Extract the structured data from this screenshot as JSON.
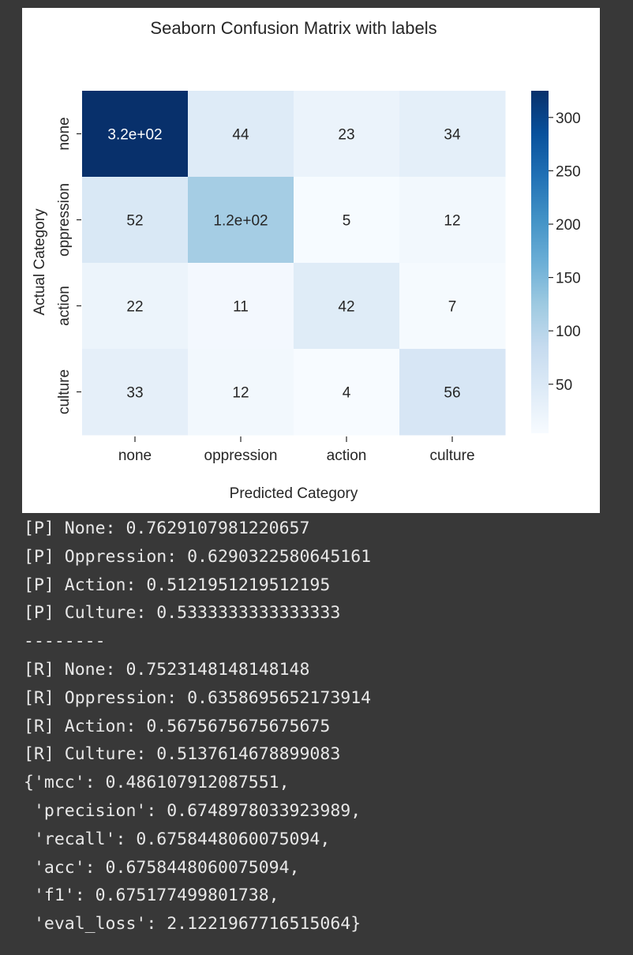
{
  "chart_data": {
    "type": "heatmap",
    "title": "Seaborn Confusion Matrix with labels",
    "xlabel": "Predicted Category",
    "ylabel": "Actual Category",
    "x_categories": [
      "none",
      "oppression",
      "action",
      "culture"
    ],
    "y_categories": [
      "none",
      "oppression",
      "action",
      "culture"
    ],
    "values": [
      [
        325,
        44,
        23,
        34
      ],
      [
        52,
        117,
        5,
        12
      ],
      [
        22,
        11,
        42,
        7
      ],
      [
        33,
        12,
        4,
        56
      ]
    ],
    "annotations": [
      [
        "3.2e+02",
        "44",
        "23",
        "34"
      ],
      [
        "52",
        "1.2e+02",
        "5",
        "12"
      ],
      [
        "22",
        "11",
        "42",
        "7"
      ],
      [
        "33",
        "12",
        "4",
        "56"
      ]
    ],
    "colormap": "Blues",
    "colorbar": {
      "min": 4,
      "max": 325,
      "ticks": [
        300,
        250,
        200,
        150,
        100,
        50
      ],
      "tick_labels": [
        "300",
        "250",
        "200",
        "150",
        "100",
        "50"
      ]
    },
    "colors": {
      "low": "#f7fbff",
      "high": "#08306b"
    }
  },
  "output": {
    "lines": [
      "[P] None: 0.7629107981220657",
      "[P] Oppression: 0.6290322580645161",
      "[P] Action: 0.5121951219512195",
      "[P] Culture: 0.5333333333333333",
      "--------",
      "[R] None: 0.7523148148148148",
      "[R] Oppression: 0.6358695652173914",
      "[R] Action: 0.5675675675675675",
      "[R] Culture: 0.5137614678899083",
      "{'mcc': 0.486107912087551,",
      " 'precision': 0.6748978033923989,",
      " 'recall': 0.6758448060075094,",
      " 'acc': 0.6758448060075094,",
      " 'f1': 0.675177499801738,",
      " 'eval_loss': 2.1221967716515064}"
    ]
  }
}
